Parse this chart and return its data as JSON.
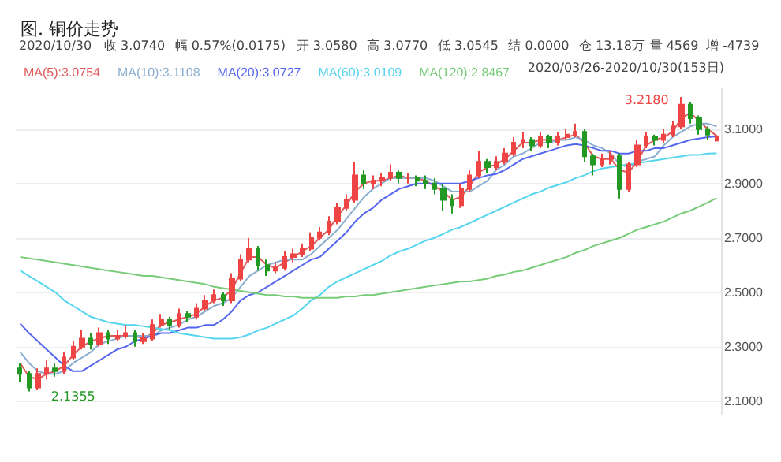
{
  "chart_data": {
    "type": "candlestick",
    "title": "图. 铜价走势",
    "categories": [
      null,
      null,
      null,
      null,
      null,
      null,
      null,
      null,
      null,
      null,
      null,
      null,
      null,
      null,
      null,
      null,
      null,
      null,
      null,
      null,
      null,
      null,
      null,
      null,
      null,
      null,
      null,
      null,
      null,
      null,
      null,
      null,
      null,
      null,
      null,
      null,
      null,
      null,
      null,
      null,
      null,
      null,
      null,
      null,
      null,
      null,
      null,
      null,
      null,
      null,
      null,
      null,
      null,
      null,
      null,
      null,
      null,
      null,
      null,
      null,
      null,
      null,
      null,
      null,
      null,
      null,
      null,
      null,
      null,
      null,
      null,
      null,
      null,
      null,
      null,
      null,
      null,
      null,
      null,
      null
    ],
    "ohlc": [
      [
        2.22,
        2.24,
        2.17,
        2.2
      ],
      [
        2.2,
        2.21,
        2.1355,
        2.15
      ],
      [
        2.15,
        2.22,
        2.14,
        2.2
      ],
      [
        2.2,
        2.25,
        2.18,
        2.22
      ],
      [
        2.22,
        2.24,
        2.19,
        2.21
      ],
      [
        2.21,
        2.28,
        2.2,
        2.26
      ],
      [
        2.26,
        2.32,
        2.25,
        2.3
      ],
      [
        2.3,
        2.36,
        2.29,
        2.33
      ],
      [
        2.33,
        2.35,
        2.29,
        2.31
      ],
      [
        2.31,
        2.37,
        2.3,
        2.35
      ],
      [
        2.35,
        2.36,
        2.31,
        2.33
      ],
      [
        2.33,
        2.36,
        2.32,
        2.34
      ],
      [
        2.34,
        2.38,
        2.33,
        2.35
      ],
      [
        2.35,
        2.36,
        2.3,
        2.32
      ],
      [
        2.32,
        2.35,
        2.31,
        2.33
      ],
      [
        2.33,
        2.4,
        2.32,
        2.38
      ],
      [
        2.38,
        2.42,
        2.37,
        2.4
      ],
      [
        2.4,
        2.41,
        2.36,
        2.38
      ],
      [
        2.38,
        2.44,
        2.37,
        2.42
      ],
      [
        2.42,
        2.43,
        2.39,
        2.41
      ],
      [
        2.41,
        2.46,
        2.4,
        2.44
      ],
      [
        2.44,
        2.49,
        2.43,
        2.47
      ],
      [
        2.47,
        2.51,
        2.46,
        2.49
      ],
      [
        2.49,
        2.5,
        2.45,
        2.47
      ],
      [
        2.47,
        2.57,
        2.46,
        2.55
      ],
      [
        2.55,
        2.64,
        2.54,
        2.62
      ],
      [
        2.62,
        2.7,
        2.61,
        2.66
      ],
      [
        2.66,
        2.67,
        2.58,
        2.6
      ],
      [
        2.6,
        2.62,
        2.56,
        2.58
      ],
      [
        2.58,
        2.61,
        2.57,
        2.59
      ],
      [
        2.59,
        2.65,
        2.58,
        2.63
      ],
      [
        2.63,
        2.66,
        2.61,
        2.64
      ],
      [
        2.64,
        2.68,
        2.63,
        2.66
      ],
      [
        2.66,
        2.72,
        2.65,
        2.7
      ],
      [
        2.7,
        2.74,
        2.69,
        2.72
      ],
      [
        2.72,
        2.78,
        2.71,
        2.76
      ],
      [
        2.76,
        2.83,
        2.75,
        2.81
      ],
      [
        2.81,
        2.86,
        2.8,
        2.84
      ],
      [
        2.84,
        2.98,
        2.83,
        2.93
      ],
      [
        2.93,
        2.95,
        2.88,
        2.9
      ],
      [
        2.9,
        2.93,
        2.88,
        2.91
      ],
      [
        2.91,
        2.94,
        2.89,
        2.92
      ],
      [
        2.92,
        2.97,
        2.91,
        2.94
      ],
      [
        2.94,
        2.95,
        2.9,
        2.92
      ],
      [
        2.92,
        2.94,
        2.9,
        2.92
      ],
      [
        2.92,
        2.93,
        2.89,
        2.91
      ],
      [
        2.91,
        2.93,
        2.88,
        2.9
      ],
      [
        2.9,
        2.92,
        2.86,
        2.88
      ],
      [
        2.88,
        2.9,
        2.8,
        2.84
      ],
      [
        2.84,
        2.86,
        2.79,
        2.82
      ],
      [
        2.82,
        2.9,
        2.81,
        2.88
      ],
      [
        2.88,
        2.95,
        2.87,
        2.93
      ],
      [
        2.93,
        3.02,
        2.92,
        2.98
      ],
      [
        2.98,
        2.99,
        2.94,
        2.96
      ],
      [
        2.96,
        3.0,
        2.95,
        2.98
      ],
      [
        2.98,
        3.03,
        2.97,
        3.01
      ],
      [
        3.01,
        3.07,
        3.0,
        3.05
      ],
      [
        3.05,
        3.09,
        3.03,
        3.06
      ],
      [
        3.06,
        3.07,
        3.02,
        3.04
      ],
      [
        3.04,
        3.09,
        3.03,
        3.07
      ],
      [
        3.07,
        3.08,
        3.03,
        3.05
      ],
      [
        3.05,
        3.09,
        3.04,
        3.07
      ],
      [
        3.07,
        3.1,
        3.06,
        3.08
      ],
      [
        3.08,
        3.12,
        3.07,
        3.09
      ],
      [
        3.09,
        3.1,
        2.98,
        3.0
      ],
      [
        3.0,
        3.01,
        2.93,
        2.97
      ],
      [
        2.97,
        3.01,
        2.96,
        2.99
      ],
      [
        2.99,
        3.02,
        2.97,
        3.0
      ],
      [
        3.0,
        3.01,
        2.845,
        2.88
      ],
      [
        2.88,
        2.98,
        2.87,
        2.97
      ],
      [
        2.97,
        3.06,
        2.96,
        3.04
      ],
      [
        3.04,
        3.09,
        3.03,
        3.07
      ],
      [
        3.07,
        3.08,
        3.04,
        3.06
      ],
      [
        3.06,
        3.1,
        3.05,
        3.08
      ],
      [
        3.08,
        3.13,
        3.07,
        3.11
      ],
      [
        3.11,
        3.218,
        3.1,
        3.19
      ],
      [
        3.19,
        3.2,
        3.12,
        3.14
      ],
      [
        3.14,
        3.15,
        3.08,
        3.1
      ],
      [
        3.1,
        3.11,
        3.06,
        3.08
      ],
      [
        3.058,
        3.077,
        3.0545,
        3.074
      ]
    ],
    "colors": [
      "#229922",
      "#229922",
      "#ee4444",
      "#ee4444",
      "#229922",
      "#ee4444",
      "#ee4444",
      "#ee4444",
      "#229922",
      "#ee4444",
      "#229922",
      "#ee4444",
      "#ee4444",
      "#229922",
      "#ee4444",
      "#ee4444",
      "#ee4444",
      "#229922",
      "#ee4444",
      "#229922",
      "#ee4444",
      "#ee4444",
      "#ee4444",
      "#229922",
      "#ee4444",
      "#ee4444",
      "#ee4444",
      "#229922",
      "#229922",
      "#ee4444",
      "#ee4444",
      "#ee4444",
      "#ee4444",
      "#ee4444",
      "#ee4444",
      "#ee4444",
      "#ee4444",
      "#ee4444",
      "#ee4444",
      "#229922",
      "#ee4444",
      "#ee4444",
      "#ee4444",
      "#229922",
      "#ee4444",
      "#229922",
      "#229922",
      "#229922",
      "#229922",
      "#229922",
      "#ee4444",
      "#ee4444",
      "#ee4444",
      "#229922",
      "#ee4444",
      "#ee4444",
      "#ee4444",
      "#ee4444",
      "#229922",
      "#ee4444",
      "#229922",
      "#ee4444",
      "#ee4444",
      "#ee4444",
      "#229922",
      "#229922",
      "#ee4444",
      "#ee4444",
      "#229922",
      "#ee4444",
      "#ee4444",
      "#ee4444",
      "#229922",
      "#ee4444",
      "#ee4444",
      "#ee4444",
      "#229922",
      "#229922",
      "#229922",
      "#ee4444"
    ],
    "series": [
      {
        "name": "MA(5):3.0754",
        "type": "line",
        "color": "#e05a5a",
        "values": [
          2.24,
          2.19,
          2.18,
          2.2,
          2.21,
          2.23,
          2.27,
          2.3,
          2.32,
          2.33,
          2.34,
          2.34,
          2.34,
          2.34,
          2.33,
          2.35,
          2.38,
          2.39,
          2.4,
          2.41,
          2.42,
          2.45,
          2.47,
          2.48,
          2.51,
          2.57,
          2.63,
          2.63,
          2.6,
          2.59,
          2.61,
          2.63,
          2.65,
          2.67,
          2.7,
          2.73,
          2.78,
          2.82,
          2.87,
          2.9,
          2.91,
          2.91,
          2.92,
          2.93,
          2.92,
          2.92,
          2.91,
          2.89,
          2.87,
          2.84,
          2.85,
          2.89,
          2.94,
          2.96,
          2.97,
          2.99,
          3.02,
          3.05,
          3.05,
          3.06,
          3.06,
          3.06,
          3.07,
          3.08,
          3.05,
          3.0,
          2.99,
          2.99,
          2.95,
          2.94,
          2.98,
          3.04,
          3.06,
          3.07,
          3.09,
          3.14,
          3.16,
          3.13,
          3.1,
          3.075
        ]
      },
      {
        "name": "MA(10):3.1108",
        "type": "line",
        "color": "#8aaed0",
        "values": [
          2.28,
          2.24,
          2.21,
          2.2,
          2.2,
          2.21,
          2.24,
          2.26,
          2.28,
          2.31,
          2.32,
          2.33,
          2.34,
          2.34,
          2.34,
          2.34,
          2.36,
          2.37,
          2.38,
          2.4,
          2.41,
          2.43,
          2.45,
          2.46,
          2.48,
          2.52,
          2.56,
          2.58,
          2.6,
          2.61,
          2.62,
          2.62,
          2.62,
          2.64,
          2.67,
          2.7,
          2.73,
          2.77,
          2.81,
          2.85,
          2.88,
          2.9,
          2.92,
          2.92,
          2.92,
          2.92,
          2.92,
          2.91,
          2.89,
          2.87,
          2.87,
          2.87,
          2.89,
          2.91,
          2.95,
          2.97,
          3.0,
          3.01,
          3.03,
          3.05,
          3.05,
          3.06,
          3.06,
          3.07,
          3.06,
          3.04,
          3.03,
          3.01,
          2.97,
          2.96,
          2.98,
          2.99,
          3.0,
          3.04,
          3.07,
          3.09,
          3.11,
          3.12,
          3.12,
          3.11
        ]
      },
      {
        "name": "MA(20):3.0727",
        "type": "line",
        "color": "#5566ee",
        "values": [
          2.385,
          2.35,
          2.32,
          2.29,
          2.26,
          2.23,
          2.21,
          2.21,
          2.23,
          2.25,
          2.27,
          2.29,
          2.3,
          2.32,
          2.33,
          2.34,
          2.35,
          2.35,
          2.36,
          2.37,
          2.37,
          2.38,
          2.38,
          2.4,
          2.43,
          2.47,
          2.49,
          2.5,
          2.52,
          2.54,
          2.56,
          2.58,
          2.6,
          2.62,
          2.63,
          2.66,
          2.69,
          2.72,
          2.76,
          2.79,
          2.81,
          2.84,
          2.86,
          2.88,
          2.89,
          2.9,
          2.9,
          2.9,
          2.9,
          2.9,
          2.9,
          2.91,
          2.92,
          2.93,
          2.935,
          2.95,
          2.97,
          2.99,
          3.0,
          3.01,
          3.02,
          3.03,
          3.04,
          3.045,
          3.04,
          3.03,
          3.02,
          3.02,
          3.01,
          3.01,
          3.02,
          3.02,
          3.03,
          3.03,
          3.04,
          3.05,
          3.06,
          3.065,
          3.07,
          3.073
        ]
      },
      {
        "name": "MA(60):3.0109",
        "type": "line",
        "color": "#55d5ee",
        "values": [
          2.58,
          2.56,
          2.54,
          2.52,
          2.5,
          2.47,
          2.45,
          2.43,
          2.41,
          2.4,
          2.39,
          2.385,
          2.38,
          2.38,
          2.375,
          2.37,
          2.365,
          2.36,
          2.35,
          2.345,
          2.34,
          2.335,
          2.33,
          2.33,
          2.33,
          2.335,
          2.345,
          2.36,
          2.37,
          2.385,
          2.4,
          2.415,
          2.44,
          2.47,
          2.49,
          2.52,
          2.54,
          2.555,
          2.57,
          2.585,
          2.6,
          2.615,
          2.635,
          2.65,
          2.66,
          2.675,
          2.69,
          2.7,
          2.715,
          2.73,
          2.74,
          2.755,
          2.77,
          2.785,
          2.8,
          2.815,
          2.83,
          2.845,
          2.86,
          2.87,
          2.885,
          2.895,
          2.905,
          2.92,
          2.93,
          2.945,
          2.955,
          2.96,
          2.965,
          2.97,
          2.975,
          2.98,
          2.985,
          2.99,
          2.995,
          3.0,
          3.005,
          3.005,
          3.01,
          3.011
        ]
      },
      {
        "name": "MA(120):2.8467",
        "type": "line",
        "color": "#77cc77",
        "values": [
          2.63,
          2.625,
          2.62,
          2.615,
          2.61,
          2.605,
          2.6,
          2.595,
          2.59,
          2.585,
          2.58,
          2.575,
          2.57,
          2.565,
          2.56,
          2.56,
          2.555,
          2.55,
          2.545,
          2.54,
          2.535,
          2.53,
          2.52,
          2.515,
          2.51,
          2.505,
          2.5,
          2.495,
          2.49,
          2.49,
          2.485,
          2.485,
          2.48,
          2.48,
          2.48,
          2.48,
          2.48,
          2.485,
          2.485,
          2.49,
          2.49,
          2.495,
          2.5,
          2.505,
          2.51,
          2.515,
          2.52,
          2.525,
          2.53,
          2.535,
          2.54,
          2.54,
          2.545,
          2.55,
          2.56,
          2.565,
          2.575,
          2.58,
          2.59,
          2.6,
          2.61,
          2.62,
          2.63,
          2.645,
          2.655,
          2.67,
          2.68,
          2.69,
          2.7,
          2.715,
          2.73,
          2.74,
          2.75,
          2.76,
          2.775,
          2.79,
          2.8,
          2.815,
          2.83,
          2.847
        ]
      }
    ],
    "ylim": [
      2.05,
      3.25
    ],
    "yticks": [
      {
        "value": 2.1,
        "label": "2.1000"
      },
      {
        "value": 2.3,
        "label": "2.3000"
      },
      {
        "value": 2.5,
        "label": "2.5000"
      },
      {
        "value": 2.7,
        "label": "2.7000"
      },
      {
        "value": 2.9,
        "label": "2.9000"
      },
      {
        "value": 3.1,
        "label": "3.1000"
      }
    ],
    "grid": "y",
    "legend": "top left",
    "annotations": [
      "2020/10/30",
      "收 3.0740",
      "幅 0.57%(0.0175)",
      "开 3.0580",
      "高 3.0770",
      "低 3.0545",
      "结 0.0000",
      "仓 13.18万",
      "量 4569",
      "增 -4739",
      "3.2180",
      "2.1355",
      "2020/03/26-2020/10/30(153日)"
    ]
  }
}
